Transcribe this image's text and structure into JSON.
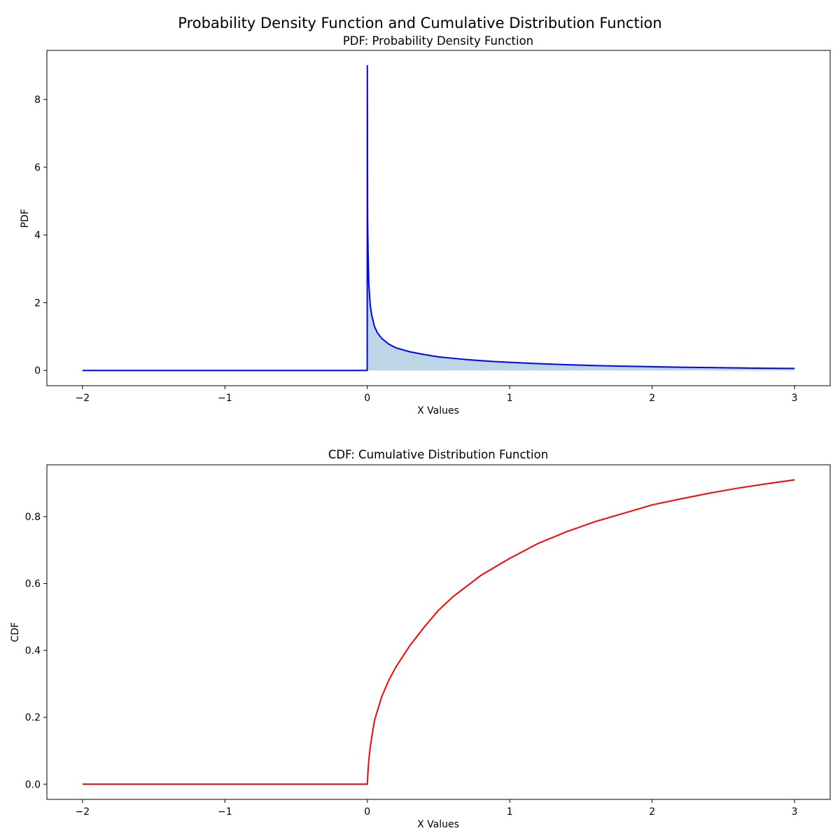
{
  "figure": {
    "suptitle": "Probability Density Function and Cumulative Distribution Function"
  },
  "chart_data": [
    {
      "type": "area",
      "title": "PDF: Probability Density Function",
      "xlabel": "X Values",
      "ylabel": "PDF",
      "xlim": [
        -2.25,
        3.25
      ],
      "ylim": [
        -0.45,
        9.45
      ],
      "xticks": [
        -2,
        -1,
        0,
        1,
        2,
        3
      ],
      "xtick_labels": [
        "−2",
        "−1",
        "0",
        "1",
        "2",
        "3"
      ],
      "yticks": [
        0,
        2,
        4,
        6,
        8
      ],
      "ytick_labels": [
        "0",
        "2",
        "4",
        "6",
        "8"
      ],
      "grid": false,
      "series": [
        {
          "line_color": "#0000ff",
          "fill_color": "#bcd6e8",
          "x": [
            -2.0,
            -0.001,
            0.0,
            0.002,
            0.005,
            0.01,
            0.02,
            0.03,
            0.05,
            0.07,
            0.1,
            0.15,
            0.2,
            0.3,
            0.4,
            0.5,
            0.6,
            0.7,
            0.8,
            0.9,
            1.0,
            1.2,
            1.4,
            1.6,
            1.8,
            2.0,
            2.2,
            2.4,
            2.6,
            2.8,
            3.0
          ],
          "y": [
            0,
            0,
            9.0,
            4.5,
            3.6,
            2.6,
            1.95,
            1.65,
            1.3,
            1.12,
            0.95,
            0.78,
            0.67,
            0.55,
            0.47,
            0.4,
            0.36,
            0.32,
            0.29,
            0.26,
            0.24,
            0.2,
            0.17,
            0.145,
            0.125,
            0.11,
            0.095,
            0.085,
            0.075,
            0.065,
            0.06
          ]
        }
      ]
    },
    {
      "type": "line",
      "title": "CDF: Cumulative Distribution Function",
      "xlabel": "X Values",
      "ylabel": "CDF",
      "xlim": [
        -2.25,
        3.25
      ],
      "ylim": [
        -0.0455,
        0.955
      ],
      "xticks": [
        -2,
        -1,
        0,
        1,
        2,
        3
      ],
      "xtick_labels": [
        "−2",
        "−1",
        "0",
        "1",
        "2",
        "3"
      ],
      "yticks": [
        0.0,
        0.2,
        0.4,
        0.6,
        0.8
      ],
      "ytick_labels": [
        "0.0",
        "0.2",
        "0.4",
        "0.6",
        "0.8"
      ],
      "grid": false,
      "series": [
        {
          "line_color": "#ff0000",
          "x": [
            -2.0,
            0.0,
            0.005,
            0.01,
            0.02,
            0.05,
            0.1,
            0.15,
            0.2,
            0.3,
            0.4,
            0.5,
            0.6,
            0.8,
            1.0,
            1.2,
            1.4,
            1.6,
            1.8,
            2.0,
            2.2,
            2.4,
            2.6,
            2.8,
            3.0
          ],
          "y": [
            0.0,
            0.0,
            0.04,
            0.07,
            0.11,
            0.19,
            0.26,
            0.31,
            0.35,
            0.415,
            0.47,
            0.52,
            0.56,
            0.625,
            0.675,
            0.72,
            0.755,
            0.785,
            0.81,
            0.835,
            0.853,
            0.87,
            0.885,
            0.898,
            0.91
          ]
        }
      ]
    }
  ]
}
